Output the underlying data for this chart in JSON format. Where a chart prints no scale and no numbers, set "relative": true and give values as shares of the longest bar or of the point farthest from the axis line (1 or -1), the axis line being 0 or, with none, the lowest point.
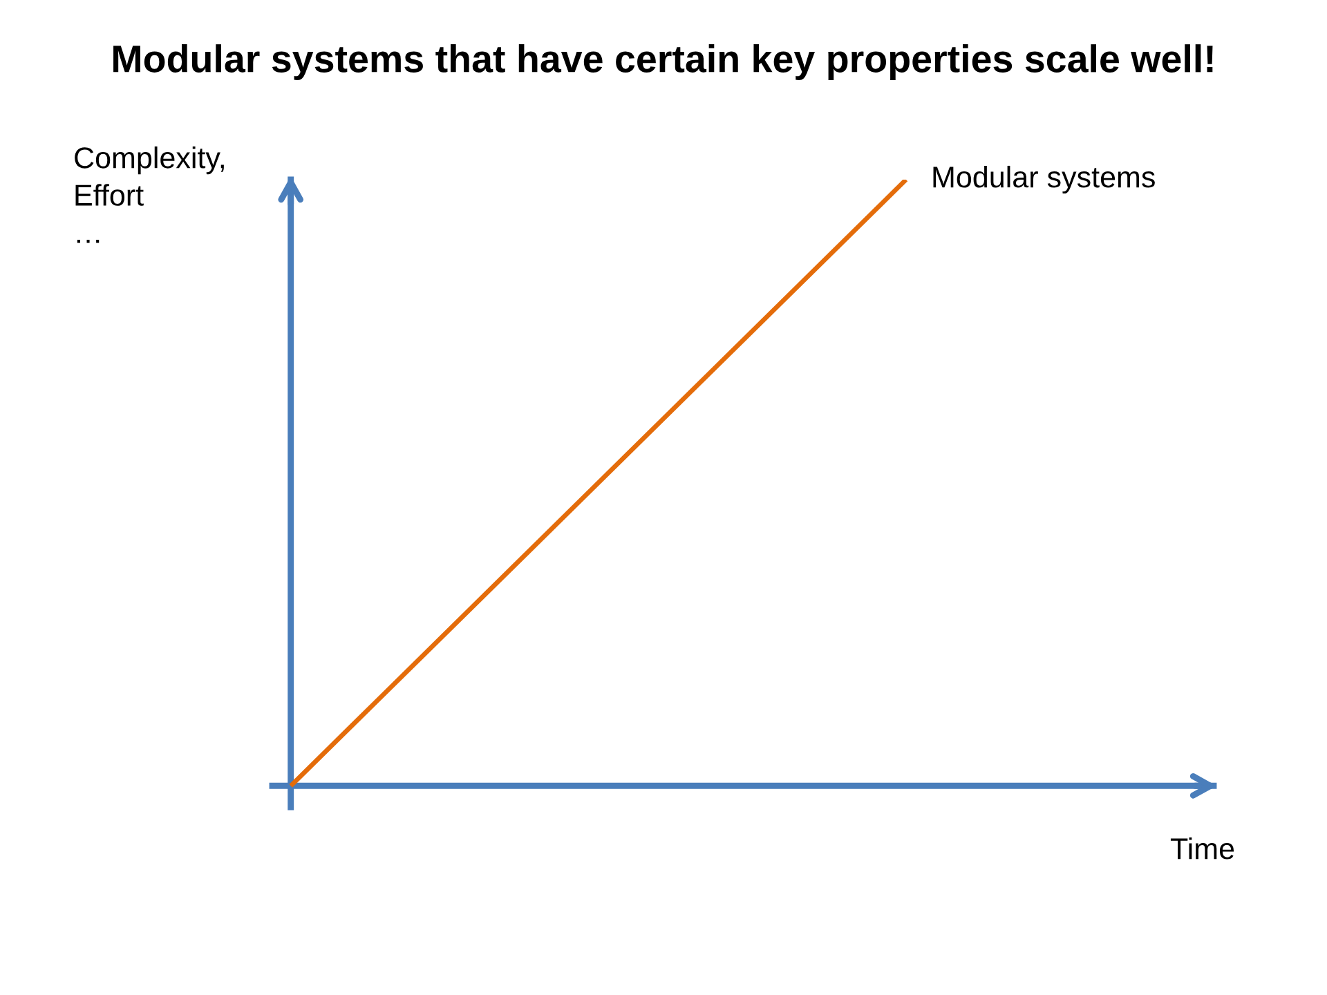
{
  "chart_data": {
    "type": "line",
    "title": "Modular systems that have certain key properties scale well!",
    "xlabel": "Time",
    "ylabel": "Complexity,\nEffort\n…",
    "categories": [
      null,
      null
    ],
    "relative": true,
    "series": [
      {
        "name": "Modular systems",
        "color": "#e46c0a",
        "values": [
          0,
          1
        ]
      }
    ]
  }
}
